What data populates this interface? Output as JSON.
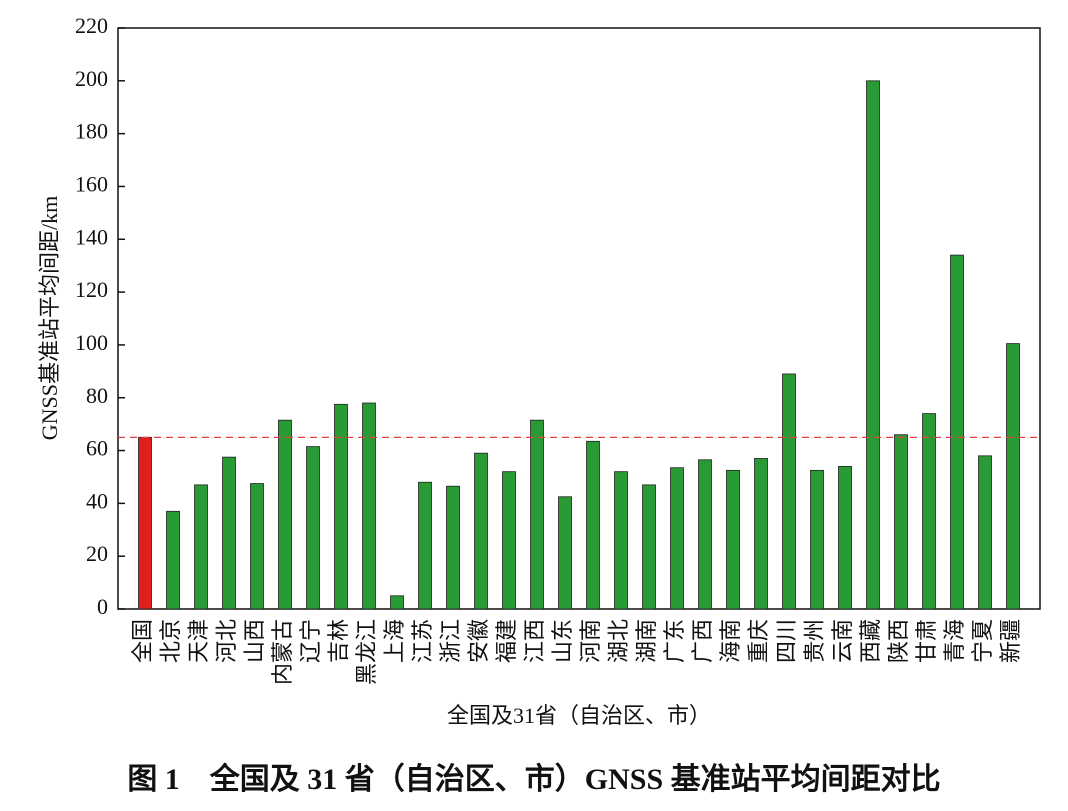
{
  "chart_data": {
    "type": "bar",
    "y_label": "GNSS基准站平均间距/km",
    "x_label": "全国及31省（自治区、市）",
    "caption": "图 1　全国及 31 省（自治区、市）GNSS 基准站平均间距对比",
    "categories": [
      "全国",
      "北京",
      "天津",
      "河北",
      "山西",
      "内蒙古",
      "辽宁",
      "吉林",
      "黑龙江",
      "上海",
      "江苏",
      "浙江",
      "安徽",
      "福建",
      "江西",
      "山东",
      "河南",
      "湖北",
      "湖南",
      "广东",
      "广西",
      "海南",
      "重庆",
      "四川",
      "贵州",
      "云南",
      "西藏",
      "陕西",
      "甘肃",
      "青海",
      "宁夏",
      "新疆"
    ],
    "values": [
      65,
      37,
      47,
      57.5,
      47.5,
      71.5,
      61.5,
      77.5,
      78,
      5,
      48,
      46.5,
      59,
      52,
      71.5,
      42.5,
      63.5,
      52,
      47,
      53.5,
      56.5,
      52.5,
      57,
      89,
      52.5,
      54,
      200,
      66,
      74,
      134,
      58,
      100.5
    ],
    "colors": [
      "#e01f1f",
      "#2a9a35",
      "#2a9a35",
      "#2a9a35",
      "#2a9a35",
      "#2a9a35",
      "#2a9a35",
      "#2a9a35",
      "#2a9a35",
      "#2a9a35",
      "#2a9a35",
      "#2a9a35",
      "#2a9a35",
      "#2a9a35",
      "#2a9a35",
      "#2a9a35",
      "#2a9a35",
      "#2a9a35",
      "#2a9a35",
      "#2a9a35",
      "#2a9a35",
      "#2a9a35",
      "#2a9a35",
      "#2a9a35",
      "#2a9a35",
      "#2a9a35",
      "#2a9a35",
      "#2a9a35",
      "#2a9a35",
      "#2a9a35",
      "#2a9a35",
      "#2a9a35"
    ],
    "reference_line": true,
    "reference_color": "#e04040",
    "ylim": [
      0,
      220
    ],
    "yticks": [
      0,
      20,
      40,
      60,
      80,
      100,
      120,
      140,
      160,
      180,
      200,
      220
    ]
  }
}
